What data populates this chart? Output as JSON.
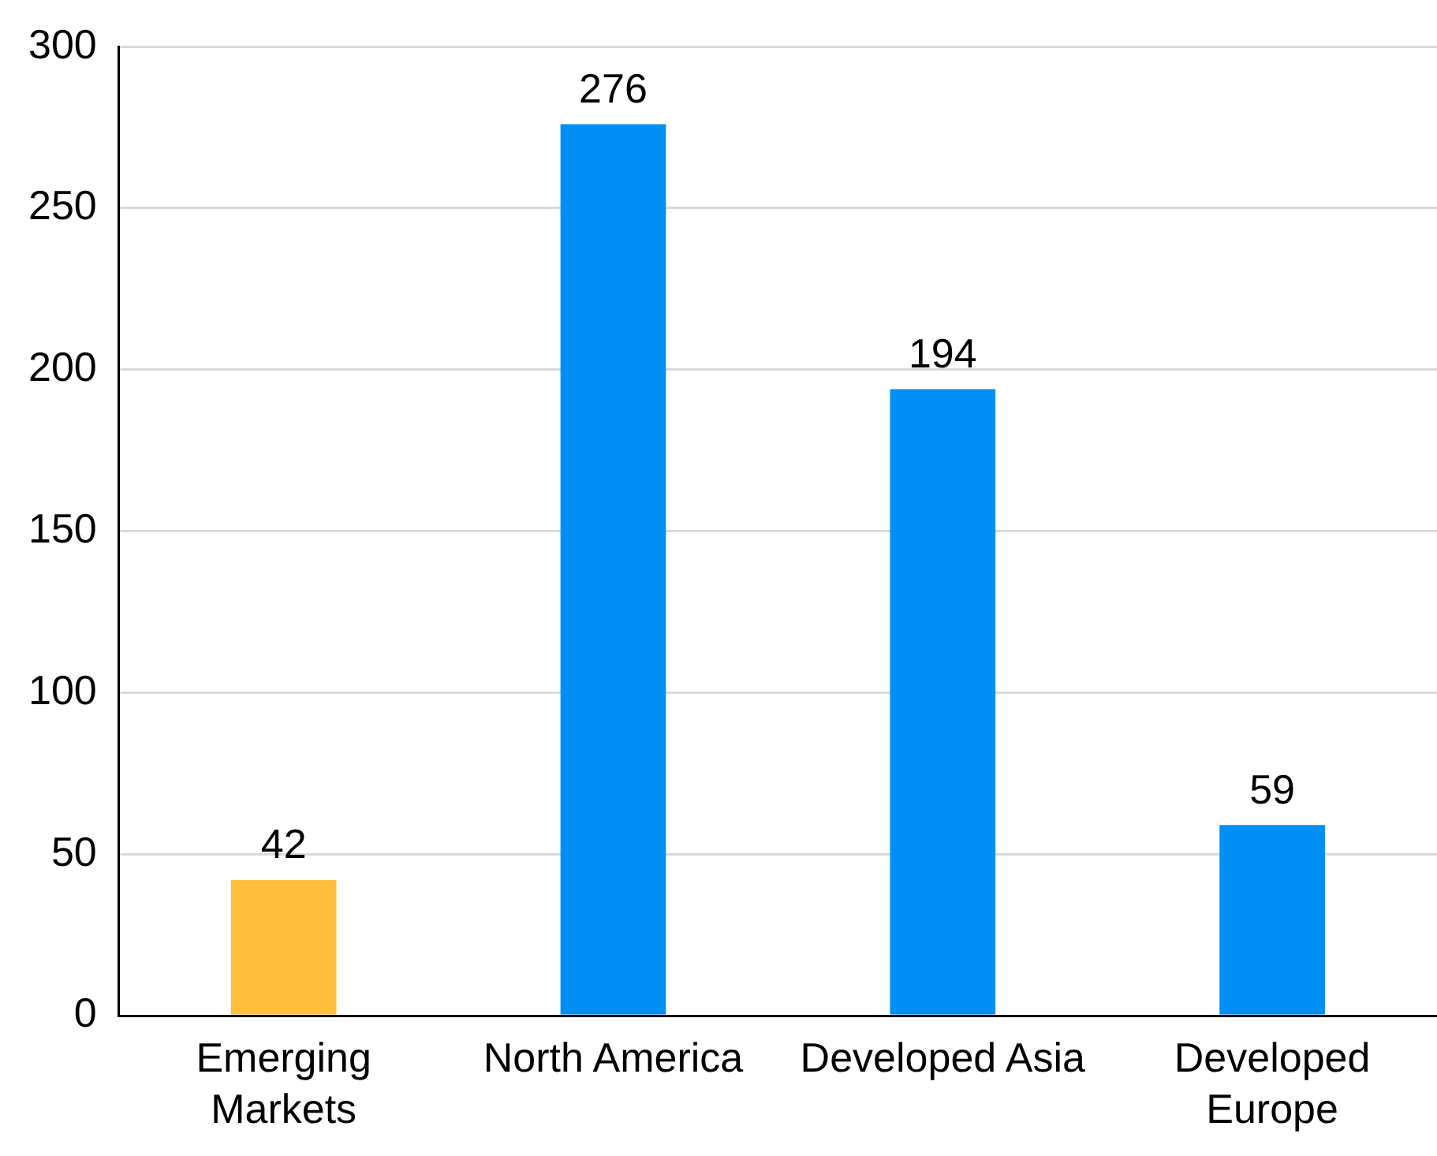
{
  "chart_data": {
    "type": "bar",
    "categories": [
      "Emerging Markets",
      "North America",
      "Developed Asia",
      "Developed Europe"
    ],
    "values": [
      42,
      276,
      194,
      59
    ],
    "colors": [
      "#ffbf3c",
      "#0090f5",
      "#0090f5",
      "#0090f5"
    ],
    "ylim": [
      0,
      300
    ],
    "yticks": [
      0,
      50,
      100,
      150,
      200,
      250,
      300
    ],
    "grid": "y",
    "data_labels": true
  }
}
